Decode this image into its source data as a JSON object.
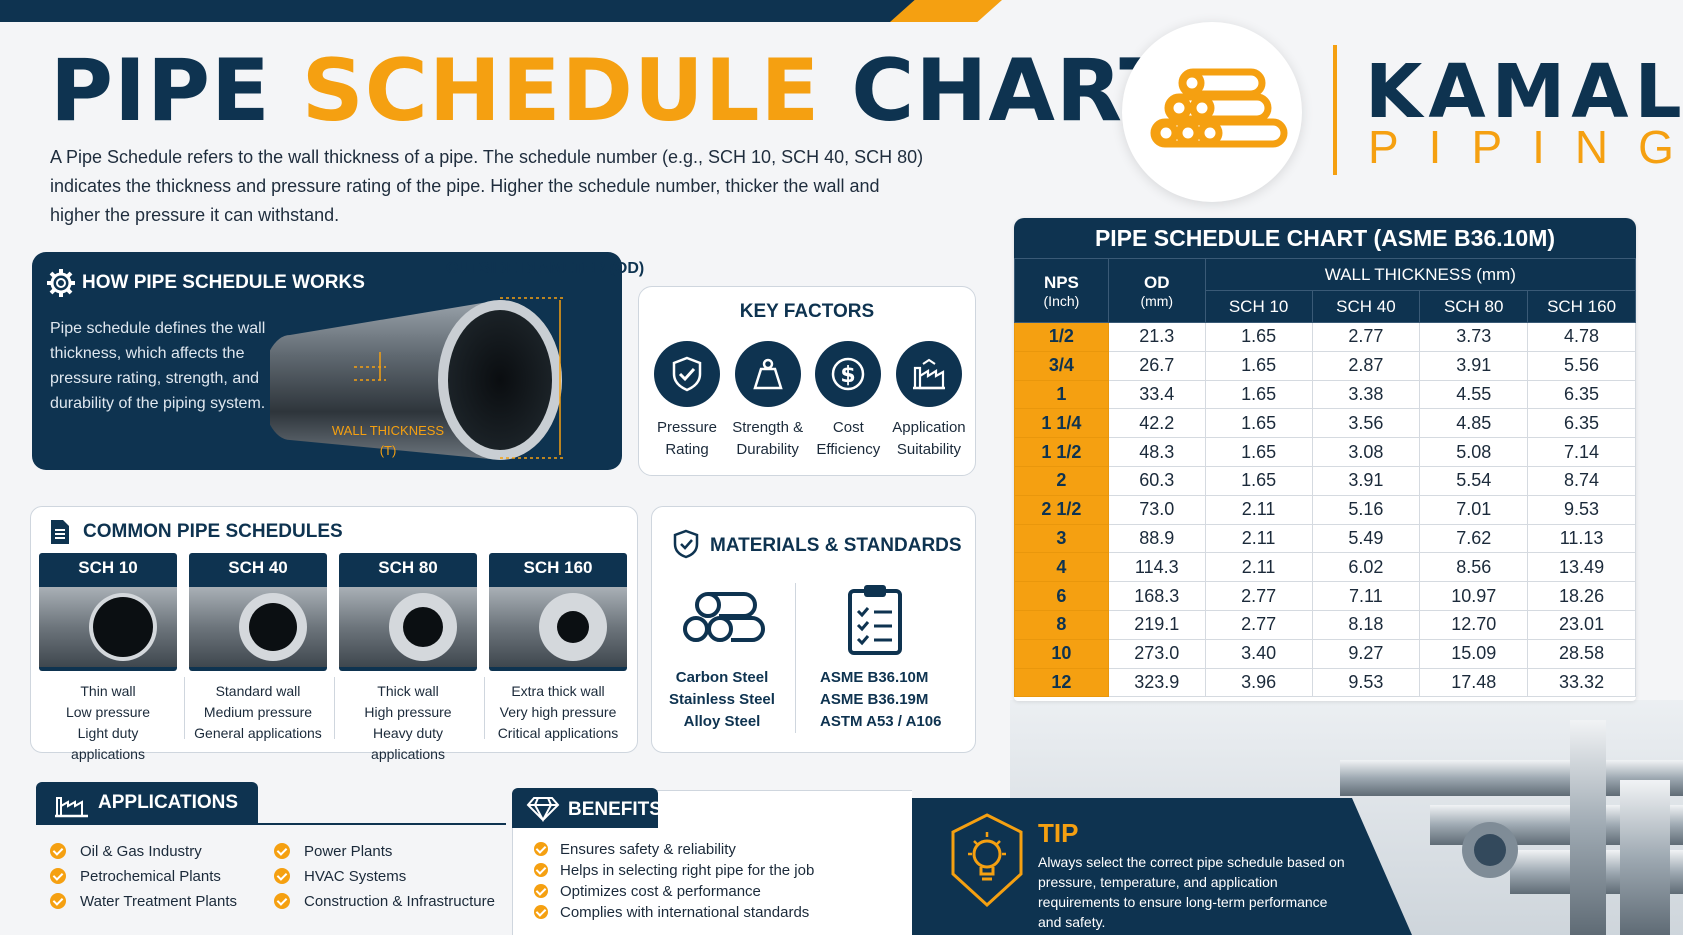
{
  "header": {
    "title_part1": "PIPE",
    "title_part2": "SCHEDULE",
    "title_part3": "CHART",
    "intro": "A Pipe Schedule refers to the wall thickness of a pipe. The schedule number (e.g., SCH 10, SCH 40, SCH 80) indicates the thickness and pressure rating of the pipe. Higher the schedule number, thicker the wall and higher the pressure it can withstand."
  },
  "logo": {
    "line1": "KAMAL",
    "line2": "PIPING",
    "icon": "stacked-pipes-icon"
  },
  "how_it_works": {
    "title": "HOW PIPE SCHEDULE WORKS",
    "text": "Pipe schedule defines the wall thickness, which affects the pressure rating, strength, and durability of the piping system.",
    "od_label": "OUTSIDE DIAMETER (OD)",
    "wall_label_1": "WALL THICKNESS",
    "wall_label_2": "(T)"
  },
  "key_factors": {
    "title": "KEY FACTORS",
    "items": [
      {
        "line1": "Pressure",
        "line2": "Rating",
        "icon": "shield-check-icon"
      },
      {
        "line1": "Strength &",
        "line2": "Durability",
        "icon": "weight-icon"
      },
      {
        "line1": "Cost",
        "line2": "Efficiency",
        "icon": "dollar-icon"
      },
      {
        "line1": "Application",
        "line2": "Suitability",
        "icon": "factory-icon"
      }
    ]
  },
  "common_schedules": {
    "title": "COMMON PIPE SCHEDULES",
    "items": [
      {
        "name": "SCH 10",
        "l1": "Thin wall",
        "l2": "Low pressure",
        "l3": "Light duty applications"
      },
      {
        "name": "SCH 40",
        "l1": "Standard wall",
        "l2": "Medium pressure",
        "l3": "General applications"
      },
      {
        "name": "SCH 80",
        "l1": "Thick wall",
        "l2": "High pressure",
        "l3": "Heavy duty applications"
      },
      {
        "name": "SCH 160",
        "l1": "Extra thick wall",
        "l2": "Very high pressure",
        "l3": "Critical applications"
      }
    ]
  },
  "materials": {
    "title": "MATERIALS & STANDARDS",
    "materials": [
      "Carbon Steel",
      "Stainless Steel",
      "Alloy Steel"
    ],
    "standards": [
      "ASME B36.10M",
      "ASME B36.19M",
      "ASTM A53 / A106"
    ]
  },
  "table": {
    "title": "PIPE SCHEDULE CHART (ASME B36.10M)",
    "nps_head": "NPS",
    "nps_unit": "(Inch)",
    "od_head": "OD",
    "od_unit": "(mm)",
    "wall_head": "WALL THICKNESS (mm)",
    "sch_heads": [
      "SCH 10",
      "SCH 40",
      "SCH 80",
      "SCH 160"
    ],
    "rows": [
      [
        "1/2",
        "21.3",
        "1.65",
        "2.77",
        "3.73",
        "4.78"
      ],
      [
        "3/4",
        "26.7",
        "1.65",
        "2.87",
        "3.91",
        "5.56"
      ],
      [
        "1",
        "33.4",
        "1.65",
        "3.38",
        "4.55",
        "6.35"
      ],
      [
        "1 1/4",
        "42.2",
        "1.65",
        "3.56",
        "4.85",
        "6.35"
      ],
      [
        "1 1/2",
        "48.3",
        "1.65",
        "3.08",
        "5.08",
        "7.14"
      ],
      [
        "2",
        "60.3",
        "1.65",
        "3.91",
        "5.54",
        "8.74"
      ],
      [
        "2 1/2",
        "73.0",
        "2.11",
        "5.16",
        "7.01",
        "9.53"
      ],
      [
        "3",
        "88.9",
        "2.11",
        "5.49",
        "7.62",
        "11.13"
      ],
      [
        "4",
        "114.3",
        "2.11",
        "6.02",
        "8.56",
        "13.49"
      ],
      [
        "6",
        "168.3",
        "2.77",
        "7.11",
        "10.97",
        "18.26"
      ],
      [
        "8",
        "219.1",
        "2.77",
        "8.18",
        "12.70",
        "23.01"
      ],
      [
        "10",
        "273.0",
        "3.40",
        "9.27",
        "15.09",
        "28.58"
      ],
      [
        "12",
        "323.9",
        "3.96",
        "9.53",
        "17.48",
        "33.32"
      ]
    ]
  },
  "applications": {
    "title": "APPLICATIONS",
    "items": [
      "Oil & Gas Industry",
      "Power Plants",
      "Petrochemical Plants",
      "HVAC Systems",
      "Water Treatment Plants",
      "Construction & Infrastructure"
    ]
  },
  "benefits": {
    "title": "BENEFITS",
    "items": [
      "Ensures safety & reliability",
      "Helps in selecting right pipe for the job",
      "Optimizes cost & performance",
      "Complies with international standards"
    ]
  },
  "tip": {
    "title": "TIP",
    "text": "Always select the correct pipe schedule based on pressure, temperature, and application requirements to ensure long-term performance and safety."
  },
  "colors": {
    "navy": "#0e3350",
    "orange": "#f5a011"
  }
}
